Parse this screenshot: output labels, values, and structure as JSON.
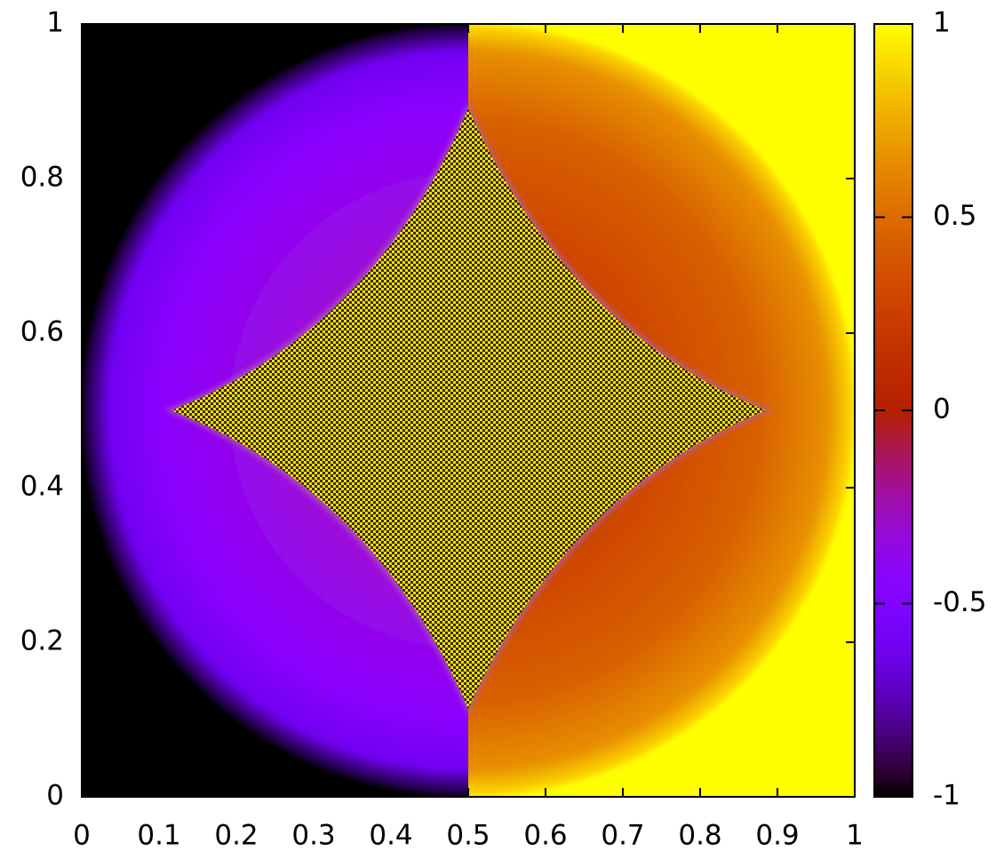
{
  "chart_data": {
    "type": "heatmap",
    "xlim": [
      0,
      1
    ],
    "xticks": [
      0,
      0.1,
      0.2,
      0.3,
      0.4,
      0.5,
      0.6,
      0.7,
      0.8,
      0.9,
      1
    ],
    "ylim": [
      0,
      1
    ],
    "yticks": [
      0,
      0.2,
      0.4,
      0.6,
      0.8,
      1
    ],
    "cblim": [
      -1,
      1
    ],
    "cbticks": [
      -1,
      -0.5,
      0,
      0.5,
      1
    ]
  }
}
